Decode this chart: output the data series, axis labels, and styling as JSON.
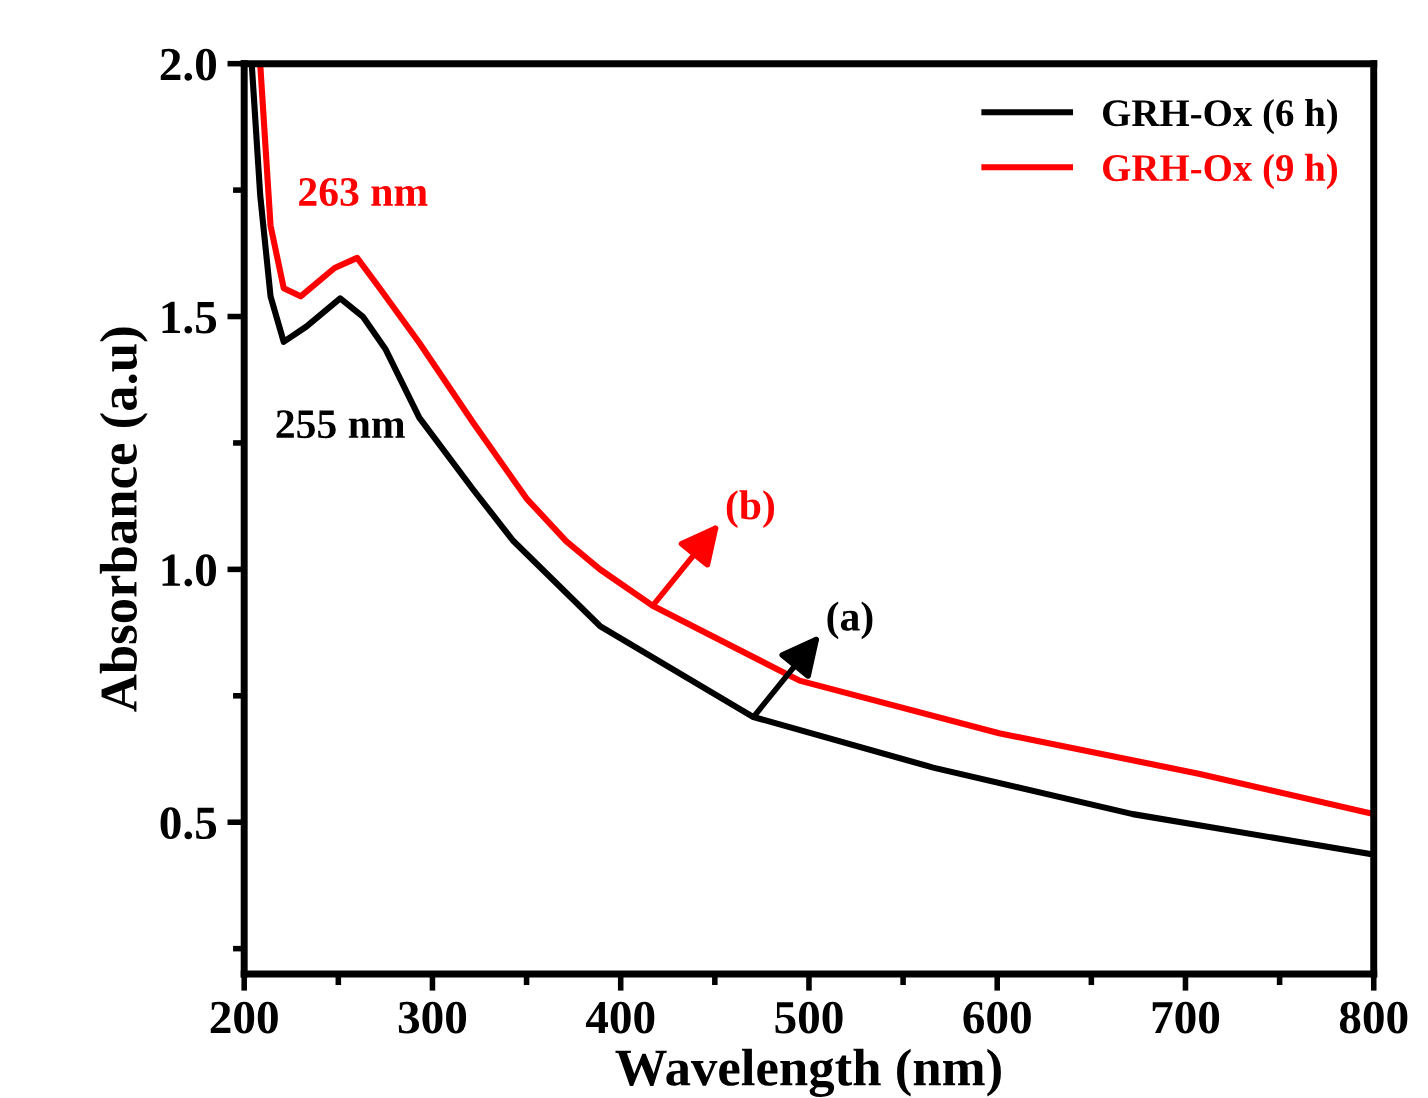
{
  "chart_data": {
    "type": "line",
    "xlabel": "Wavelength (nm)",
    "ylabel": "Absorbance (a.u)",
    "xlim": [
      200,
      800
    ],
    "xticks": [
      200,
      300,
      400,
      500,
      600,
      700,
      800
    ],
    "ylim": [
      0.2,
      2.0
    ],
    "yticks": [
      {
        "value": 0.5,
        "label": "0.5"
      },
      {
        "value": 1.0,
        "label": "1.0"
      },
      {
        "value": 1.5,
        "label": "1.5"
      },
      {
        "value": 2.0,
        "label": "2.0"
      }
    ],
    "grid": false,
    "legend": "top right",
    "marker": "none",
    "line_style": "solid",
    "series": [
      {
        "name": "GRH-Ox (6 h)",
        "color": "#000000",
        "x": [
          204,
          208.5,
          214,
          221,
          233,
          251,
          263,
          275,
          293,
          322,
          343,
          389,
          470.5,
          566,
          672,
          800
        ],
        "values": [
          2.0,
          1.74,
          1.54,
          1.45,
          1.48,
          1.536,
          1.5,
          1.436,
          1.3,
          1.156,
          1.056,
          0.888,
          0.708,
          0.608,
          0.516,
          0.436
        ]
      },
      {
        "name": "GRH-Ox (9 h)",
        "color": "#ff0000",
        "x": [
          208.5,
          214,
          221,
          230,
          248,
          260,
          272,
          293,
          322,
          350,
          371,
          389,
          417,
          495,
          601,
          707,
          800
        ],
        "values": [
          2.0,
          1.68,
          1.556,
          1.54,
          1.596,
          1.616,
          1.556,
          1.448,
          1.288,
          1.14,
          1.056,
          1.0,
          0.928,
          0.78,
          0.676,
          0.596,
          0.516
        ]
      }
    ],
    "annotations": [
      "255 nm",
      "263 nm",
      {
        "text": "(a)",
        "x": 470.5,
        "y": 0.708
      },
      {
        "text": "(b)",
        "x": 417,
        "y": 0.928
      }
    ]
  }
}
